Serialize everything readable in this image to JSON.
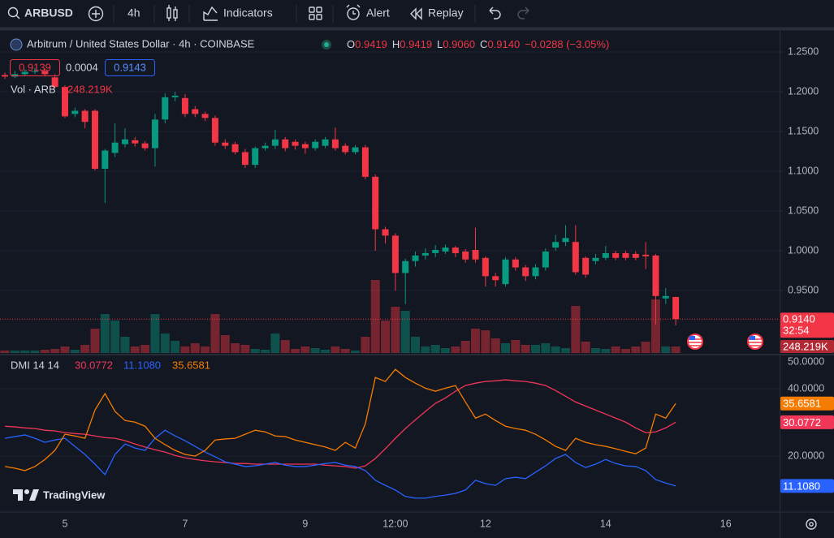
{
  "toolbar": {
    "symbol": "ARBUSD",
    "interval": "4h",
    "indicators": "Indicators",
    "alert": "Alert",
    "replay": "Replay"
  },
  "logo": "TradingView",
  "chart_data": [
    {
      "type": "candlestick",
      "title": "Arbitrum / United States Dollar · 4h · COINBASE",
      "readout": {
        "keys": [
          "O",
          "H",
          "L",
          "C"
        ],
        "values": [
          "0.9419",
          "0.9419",
          "0.9060",
          "0.9140"
        ],
        "change": "−0.0288 (−3.05%)"
      },
      "quote": {
        "bid": "0.9139",
        "spread": "0.0004",
        "ask": "0.9143"
      },
      "countdown": "32:54",
      "categories": [
        null,
        null,
        null,
        null,
        null,
        null,
        "5",
        null,
        null,
        null,
        null,
        null,
        null,
        null,
        null,
        null,
        null,
        null,
        "7",
        null,
        null,
        null,
        null,
        null,
        null,
        null,
        null,
        null,
        null,
        null,
        "9",
        null,
        null,
        null,
        null,
        null,
        null,
        null,
        null,
        "12:00",
        null,
        null,
        null,
        null,
        null,
        null,
        null,
        null,
        "12",
        null,
        null,
        null,
        null,
        null,
        null,
        null,
        null,
        null,
        null,
        null,
        "14",
        null,
        null,
        null,
        null,
        null,
        null,
        null,
        null,
        null,
        null,
        null,
        "16"
      ],
      "open": [
        1.221,
        1.219,
        1.222,
        1.225,
        1.226,
        1.218,
        1.206,
        1.172,
        1.176,
        1.176,
        1.103,
        1.123,
        1.134,
        1.139,
        1.135,
        1.129,
        1.165,
        1.193,
        1.192,
        1.178,
        1.172,
        1.167,
        1.136,
        1.134,
        1.124,
        1.108,
        1.129,
        1.132,
        1.14,
        1.137,
        1.134,
        1.129,
        1.132,
        1.14,
        1.132,
        1.124,
        1.13,
        1.093,
        1.027,
        1.019,
        0.972,
        0.987,
        0.994,
        0.997,
        0.999,
        1.004,
        0.999,
        1.001,
        0.991,
        0.968,
        0.958,
        0.989,
        0.979,
        0.968,
        0.979,
        1.004,
        1.011,
        1.011,
        0.991,
        0.987,
        0.991,
        0.997,
        0.997,
        0.996,
        0.995,
        0.994,
        0.94,
        0.9419,
        null,
        null,
        null,
        null,
        null
      ],
      "high": [
        1.224,
        1.226,
        1.228,
        1.23,
        1.229,
        1.222,
        1.208,
        1.18,
        1.178,
        1.178,
        1.128,
        1.16,
        1.154,
        1.143,
        1.138,
        1.172,
        1.198,
        1.2,
        1.197,
        1.182,
        1.175,
        1.17,
        1.14,
        1.137,
        1.128,
        1.131,
        1.136,
        1.152,
        1.143,
        1.14,
        1.137,
        1.14,
        1.143,
        1.155,
        1.135,
        1.133,
        1.133,
        1.096,
        1.03,
        1.022,
        0.99,
        0.999,
        1.003,
        1.007,
        1.008,
        1.006,
        1.002,
        1.029,
        0.993,
        0.972,
        0.992,
        0.992,
        0.982,
        0.983,
        1.003,
        1.02,
        1.032,
        1.032,
        0.993,
        0.996,
        1.006,
        1.0,
        1.0,
        0.999,
        1.011,
        0.996,
        0.953,
        0.9419,
        null,
        null,
        null,
        null,
        null
      ],
      "low": [
        1.216,
        1.217,
        1.22,
        1.222,
        1.219,
        1.204,
        1.167,
        1.168,
        1.154,
        1.101,
        1.06,
        1.118,
        1.13,
        1.131,
        1.126,
        1.106,
        1.16,
        1.188,
        1.168,
        1.168,
        1.163,
        1.132,
        1.128,
        1.121,
        1.104,
        1.104,
        1.126,
        1.128,
        1.125,
        1.127,
        1.122,
        1.126,
        1.129,
        1.126,
        1.121,
        1.121,
        1.09,
        1.0,
        1.009,
        0.95,
        0.933,
        0.98,
        0.989,
        0.992,
        0.996,
        0.992,
        0.985,
        0.985,
        0.955,
        0.955,
        0.955,
        0.975,
        0.962,
        0.964,
        0.975,
        1.0,
        1.006,
        0.97,
        0.966,
        0.983,
        0.988,
        0.988,
        0.988,
        0.988,
        0.977,
        0.907,
        0.933,
        0.906,
        null,
        null,
        null,
        null,
        null
      ],
      "close": [
        1.219,
        1.222,
        1.225,
        1.226,
        1.222,
        1.206,
        1.169,
        1.176,
        1.162,
        1.103,
        1.126,
        1.136,
        1.14,
        1.135,
        1.129,
        1.165,
        1.193,
        1.195,
        1.172,
        1.172,
        1.167,
        1.136,
        1.132,
        1.124,
        1.108,
        1.129,
        1.132,
        1.14,
        1.129,
        1.132,
        1.129,
        1.137,
        1.14,
        1.129,
        1.124,
        1.13,
        1.093,
        1.027,
        1.019,
        0.972,
        0.987,
        0.994,
        0.997,
        1.001,
        1.004,
        0.997,
        0.989,
        0.989,
        0.968,
        0.963,
        0.989,
        0.979,
        0.968,
        0.979,
        0.999,
        1.011,
        1.016,
        0.973,
        0.97,
        0.991,
        0.997,
        0.991,
        0.991,
        0.991,
        0.993,
        0.943,
        0.943,
        0.914,
        null,
        null,
        null,
        null,
        null
      ],
      "up_color": "#089981",
      "down_color": "#f23645",
      "ylim": [
        0.8714,
        1.2745
      ],
      "yticks": [
        {
          "value": 1.25,
          "label": "1.2500"
        },
        {
          "value": 1.2,
          "label": "1.2000"
        },
        {
          "value": 1.15,
          "label": "1.1500"
        },
        {
          "value": 1.1,
          "label": "1.1000"
        },
        {
          "value": 1.05,
          "label": "1.0500"
        },
        {
          "value": 1.0,
          "label": "1.0000"
        },
        {
          "value": 0.95,
          "label": "0.9500"
        }
      ],
      "volume": {
        "name": "Vol · ARB",
        "values": [
          93000,
          93000,
          93000,
          93000,
          124000,
          155000,
          248000,
          124000,
          310000,
          930000,
          1488000,
          1240000,
          620000,
          248000,
          310000,
          1488000,
          744000,
          465000,
          248000,
          372000,
          248000,
          1488000,
          682000,
          372000,
          310000,
          155000,
          124000,
          744000,
          496000,
          155000,
          248000,
          186000,
          124000,
          248000,
          155000,
          93000,
          620000,
          2790000,
          1240000,
          1767000,
          1612000,
          620000,
          248000,
          310000,
          186000,
          248000,
          465000,
          930000,
          868000,
          558000,
          372000,
          496000,
          310000,
          310000,
          372000,
          248000,
          186000,
          1798000,
          434000,
          186000,
          155000,
          248000,
          155000,
          248000,
          434000,
          2046000,
          248000,
          248219,
          null,
          null,
          null,
          null,
          null
        ],
        "value_labels": [
          null,
          null,
          null,
          null,
          null,
          null,
          null,
          null,
          null,
          null,
          null,
          null,
          null,
          null,
          null,
          null,
          null,
          null,
          null,
          null,
          null,
          null,
          null,
          null,
          null,
          null,
          null,
          null,
          null,
          null,
          null,
          null,
          null,
          null,
          null,
          null,
          null,
          null,
          null,
          null,
          null,
          null,
          null,
          null,
          null,
          null,
          null,
          null,
          null,
          null,
          null,
          null,
          null,
          null,
          null,
          null,
          null,
          null,
          null,
          null,
          null,
          null,
          null,
          null,
          null,
          null,
          null,
          "248.219K",
          null,
          null,
          null,
          null,
          null
        ]
      }
    },
    {
      "type": "line",
      "title": "DMI 14 14",
      "series": [
        {
          "color": "#f23658",
          "values": [
            28.9,
            28.7,
            28.4,
            28.2,
            27.7,
            27.5,
            27.0,
            26.7,
            26.5,
            26.0,
            25.5,
            25.3,
            24.6,
            23.6,
            22.7,
            21.9,
            21.2,
            20.2,
            19.5,
            19.0,
            18.6,
            18.3,
            18.1,
            17.8,
            17.8,
            17.6,
            17.6,
            17.6,
            17.6,
            17.6,
            17.6,
            17.6,
            17.3,
            17.1,
            16.9,
            16.4,
            17.1,
            19.3,
            22.2,
            25.3,
            28.2,
            30.8,
            33.3,
            35.7,
            37.3,
            39.3,
            41.0,
            41.7,
            42.2,
            42.4,
            42.7,
            42.4,
            42.2,
            41.7,
            41.0,
            39.5,
            37.8,
            36.1,
            34.9,
            33.7,
            32.5,
            31.3,
            30.1,
            28.4,
            27.0,
            27.2,
            28.4,
            30.0772,
            null,
            null,
            null,
            null,
            null
          ]
        },
        {
          "color": "#2962ff",
          "values": [
            25.3,
            25.8,
            26.3,
            25.3,
            24.1,
            24.8,
            25.3,
            22.9,
            20.5,
            17.6,
            14.5,
            20.5,
            23.6,
            22.4,
            21.7,
            25.3,
            27.7,
            26.0,
            24.6,
            22.9,
            21.2,
            19.8,
            18.3,
            17.6,
            16.9,
            17.1,
            17.6,
            18.1,
            17.3,
            16.9,
            16.9,
            17.3,
            17.8,
            18.1,
            17.3,
            16.9,
            15.7,
            12.8,
            11.3,
            9.9,
            8.0,
            7.5,
            7.5,
            8.0,
            8.4,
            8.9,
            9.9,
            12.8,
            11.8,
            11.3,
            13.3,
            13.7,
            13.3,
            15.2,
            17.1,
            19.3,
            20.5,
            18.1,
            16.6,
            17.6,
            19.0,
            17.8,
            17.1,
            16.9,
            15.7,
            13.0,
            12.0,
            11.108,
            null,
            null,
            null,
            null,
            null
          ],
          "value_labels": [
            null,
            null,
            null,
            null,
            null,
            null,
            null,
            null,
            null,
            null,
            null,
            null,
            null,
            null,
            null,
            null,
            null,
            null,
            null,
            null,
            null,
            null,
            null,
            null,
            null,
            null,
            null,
            null,
            null,
            null,
            null,
            null,
            null,
            null,
            null,
            null,
            null,
            null,
            null,
            null,
            null,
            null,
            null,
            null,
            null,
            null,
            null,
            null,
            null,
            null,
            null,
            null,
            null,
            null,
            null,
            null,
            null,
            null,
            null,
            null,
            null,
            null,
            null,
            null,
            null,
            null,
            null,
            "11.1080",
            null,
            null,
            null,
            null,
            null
          ]
        },
        {
          "color": "#f57c00",
          "values": [
            16.9,
            16.4,
            15.7,
            16.9,
            19.0,
            21.7,
            26.5,
            26.0,
            25.3,
            33.7,
            38.6,
            33.3,
            30.6,
            30.1,
            28.9,
            25.3,
            23.4,
            21.7,
            20.5,
            20.0,
            21.7,
            24.8,
            25.1,
            25.3,
            26.5,
            27.7,
            27.2,
            26.0,
            25.8,
            24.8,
            24.1,
            23.4,
            22.7,
            21.7,
            24.1,
            22.4,
            29.6,
            43.4,
            42.2,
            45.8,
            43.4,
            41.7,
            40.2,
            39.3,
            40.2,
            41.0,
            36.1,
            31.3,
            32.5,
            30.6,
            28.9,
            28.2,
            27.7,
            26.5,
            24.8,
            22.9,
            21.7,
            25.3,
            24.1,
            23.4,
            22.9,
            22.2,
            21.4,
            20.7,
            22.4,
            32.5,
            31.3,
            35.6581,
            null,
            null,
            null,
            null,
            null
          ]
        }
      ],
      "ylim": [
        3.6,
        50.2
      ],
      "yticks": [
        {
          "value": 50,
          "label": "50.0000"
        },
        {
          "value": 40,
          "label": "40.0000"
        },
        {
          "value": 20,
          "label": "20.0000"
        }
      ]
    }
  ]
}
